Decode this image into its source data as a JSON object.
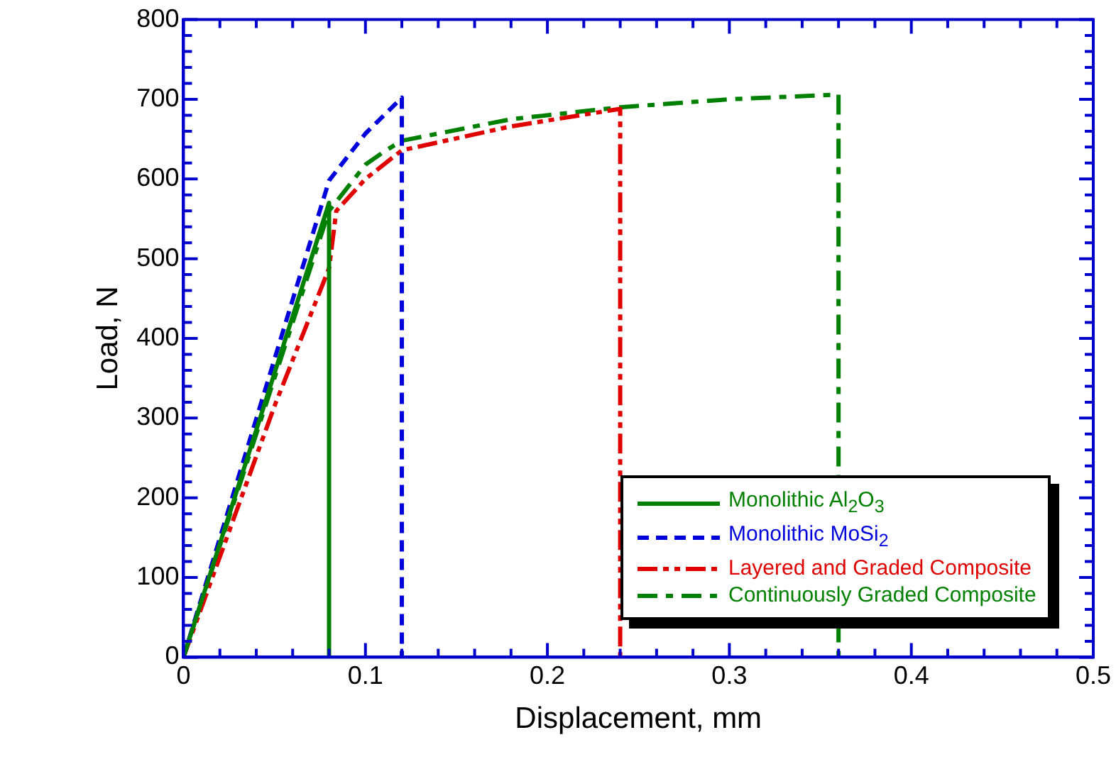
{
  "chart_data": {
    "type": "line",
    "xlabel": "Displacement, mm",
    "ylabel": "Load, N",
    "xlim": [
      0,
      0.5
    ],
    "ylim": [
      0,
      800
    ],
    "xticks": [
      0,
      {
        "value": 0.02,
        "label": null
      },
      {
        "value": 0.04,
        "label": null
      },
      {
        "value": 0.06,
        "label": null
      },
      {
        "value": 0.08,
        "label": null
      },
      0.1,
      {
        "value": 0.12,
        "label": null
      },
      {
        "value": 0.14,
        "label": null
      },
      {
        "value": 0.16,
        "label": null
      },
      {
        "value": 0.18,
        "label": null
      },
      0.2,
      {
        "value": 0.22,
        "label": null
      },
      {
        "value": 0.24,
        "label": null
      },
      {
        "value": 0.26,
        "label": null
      },
      {
        "value": 0.28,
        "label": null
      },
      0.3,
      {
        "value": 0.32,
        "label": null
      },
      {
        "value": 0.34,
        "label": null
      },
      {
        "value": 0.36,
        "label": null
      },
      {
        "value": 0.38,
        "label": null
      },
      0.4,
      {
        "value": 0.42,
        "label": null
      },
      {
        "value": 0.44,
        "label": null
      },
      {
        "value": 0.46,
        "label": null
      },
      {
        "value": 0.48,
        "label": null
      },
      0.5
    ],
    "yticks": [
      0,
      {
        "value": 20,
        "label": null
      },
      {
        "value": 40,
        "label": null
      },
      {
        "value": 60,
        "label": null
      },
      {
        "value": 80,
        "label": null
      },
      100,
      {
        "value": 120,
        "label": null
      },
      {
        "value": 140,
        "label": null
      },
      {
        "value": 160,
        "label": null
      },
      {
        "value": 180,
        "label": null
      },
      200,
      {
        "value": 220,
        "label": null
      },
      {
        "value": 240,
        "label": null
      },
      {
        "value": 260,
        "label": null
      },
      {
        "value": 280,
        "label": null
      },
      300,
      {
        "value": 320,
        "label": null
      },
      {
        "value": 340,
        "label": null
      },
      {
        "value": 360,
        "label": null
      },
      {
        "value": 380,
        "label": null
      },
      400,
      {
        "value": 420,
        "label": null
      },
      {
        "value": 440,
        "label": null
      },
      {
        "value": 460,
        "label": null
      },
      {
        "value": 480,
        "label": null
      },
      500,
      {
        "value": 520,
        "label": null
      },
      {
        "value": 540,
        "label": null
      },
      {
        "value": 560,
        "label": null
      },
      {
        "value": 580,
        "label": null
      },
      600,
      {
        "value": 620,
        "label": null
      },
      {
        "value": 640,
        "label": null
      },
      {
        "value": 660,
        "label": null
      },
      {
        "value": 680,
        "label": null
      },
      700,
      {
        "value": 720,
        "label": null
      },
      {
        "value": 740,
        "label": null
      },
      {
        "value": 760,
        "label": null
      },
      {
        "value": 780,
        "label": null
      },
      800
    ],
    "grid": false,
    "legend": "bottom right",
    "marker": "none",
    "series": [
      {
        "name": "Monolithic Al$_{2}$O$_{3}$",
        "color": "#008000",
        "line_style": "solid",
        "x": [
          0,
          0.08,
          0.08
        ],
        "values": [
          0,
          570,
          0
        ]
      },
      {
        "name": "Monolithic MoSi$_{2}$",
        "color": "#0000dd",
        "line_style": "dashed",
        "x": [
          0,
          0.08,
          0.1,
          0.12,
          0.12
        ],
        "values": [
          0,
          598,
          657,
          702,
          0
        ]
      },
      {
        "name": "Layered and Graded Composite",
        "color": "#e00000",
        "line_style": "dashdotdot",
        "x": [
          0,
          0.05,
          0.08,
          0.084,
          0.1,
          0.12,
          0.18,
          0.24,
          0.24
        ],
        "values": [
          0,
          315,
          488,
          560,
          600,
          636,
          666,
          688,
          0
        ]
      },
      {
        "name": "Continuously Graded Composite",
        "color": "#008000",
        "line_style": "dashdot",
        "x": [
          0,
          0.08,
          0.1,
          0.11,
          0.12,
          0.18,
          0.24,
          0.3,
          0.36,
          0.36
        ],
        "values": [
          0,
          560,
          618,
          634,
          648,
          675,
          690,
          700,
          706,
          0
        ]
      }
    ]
  }
}
